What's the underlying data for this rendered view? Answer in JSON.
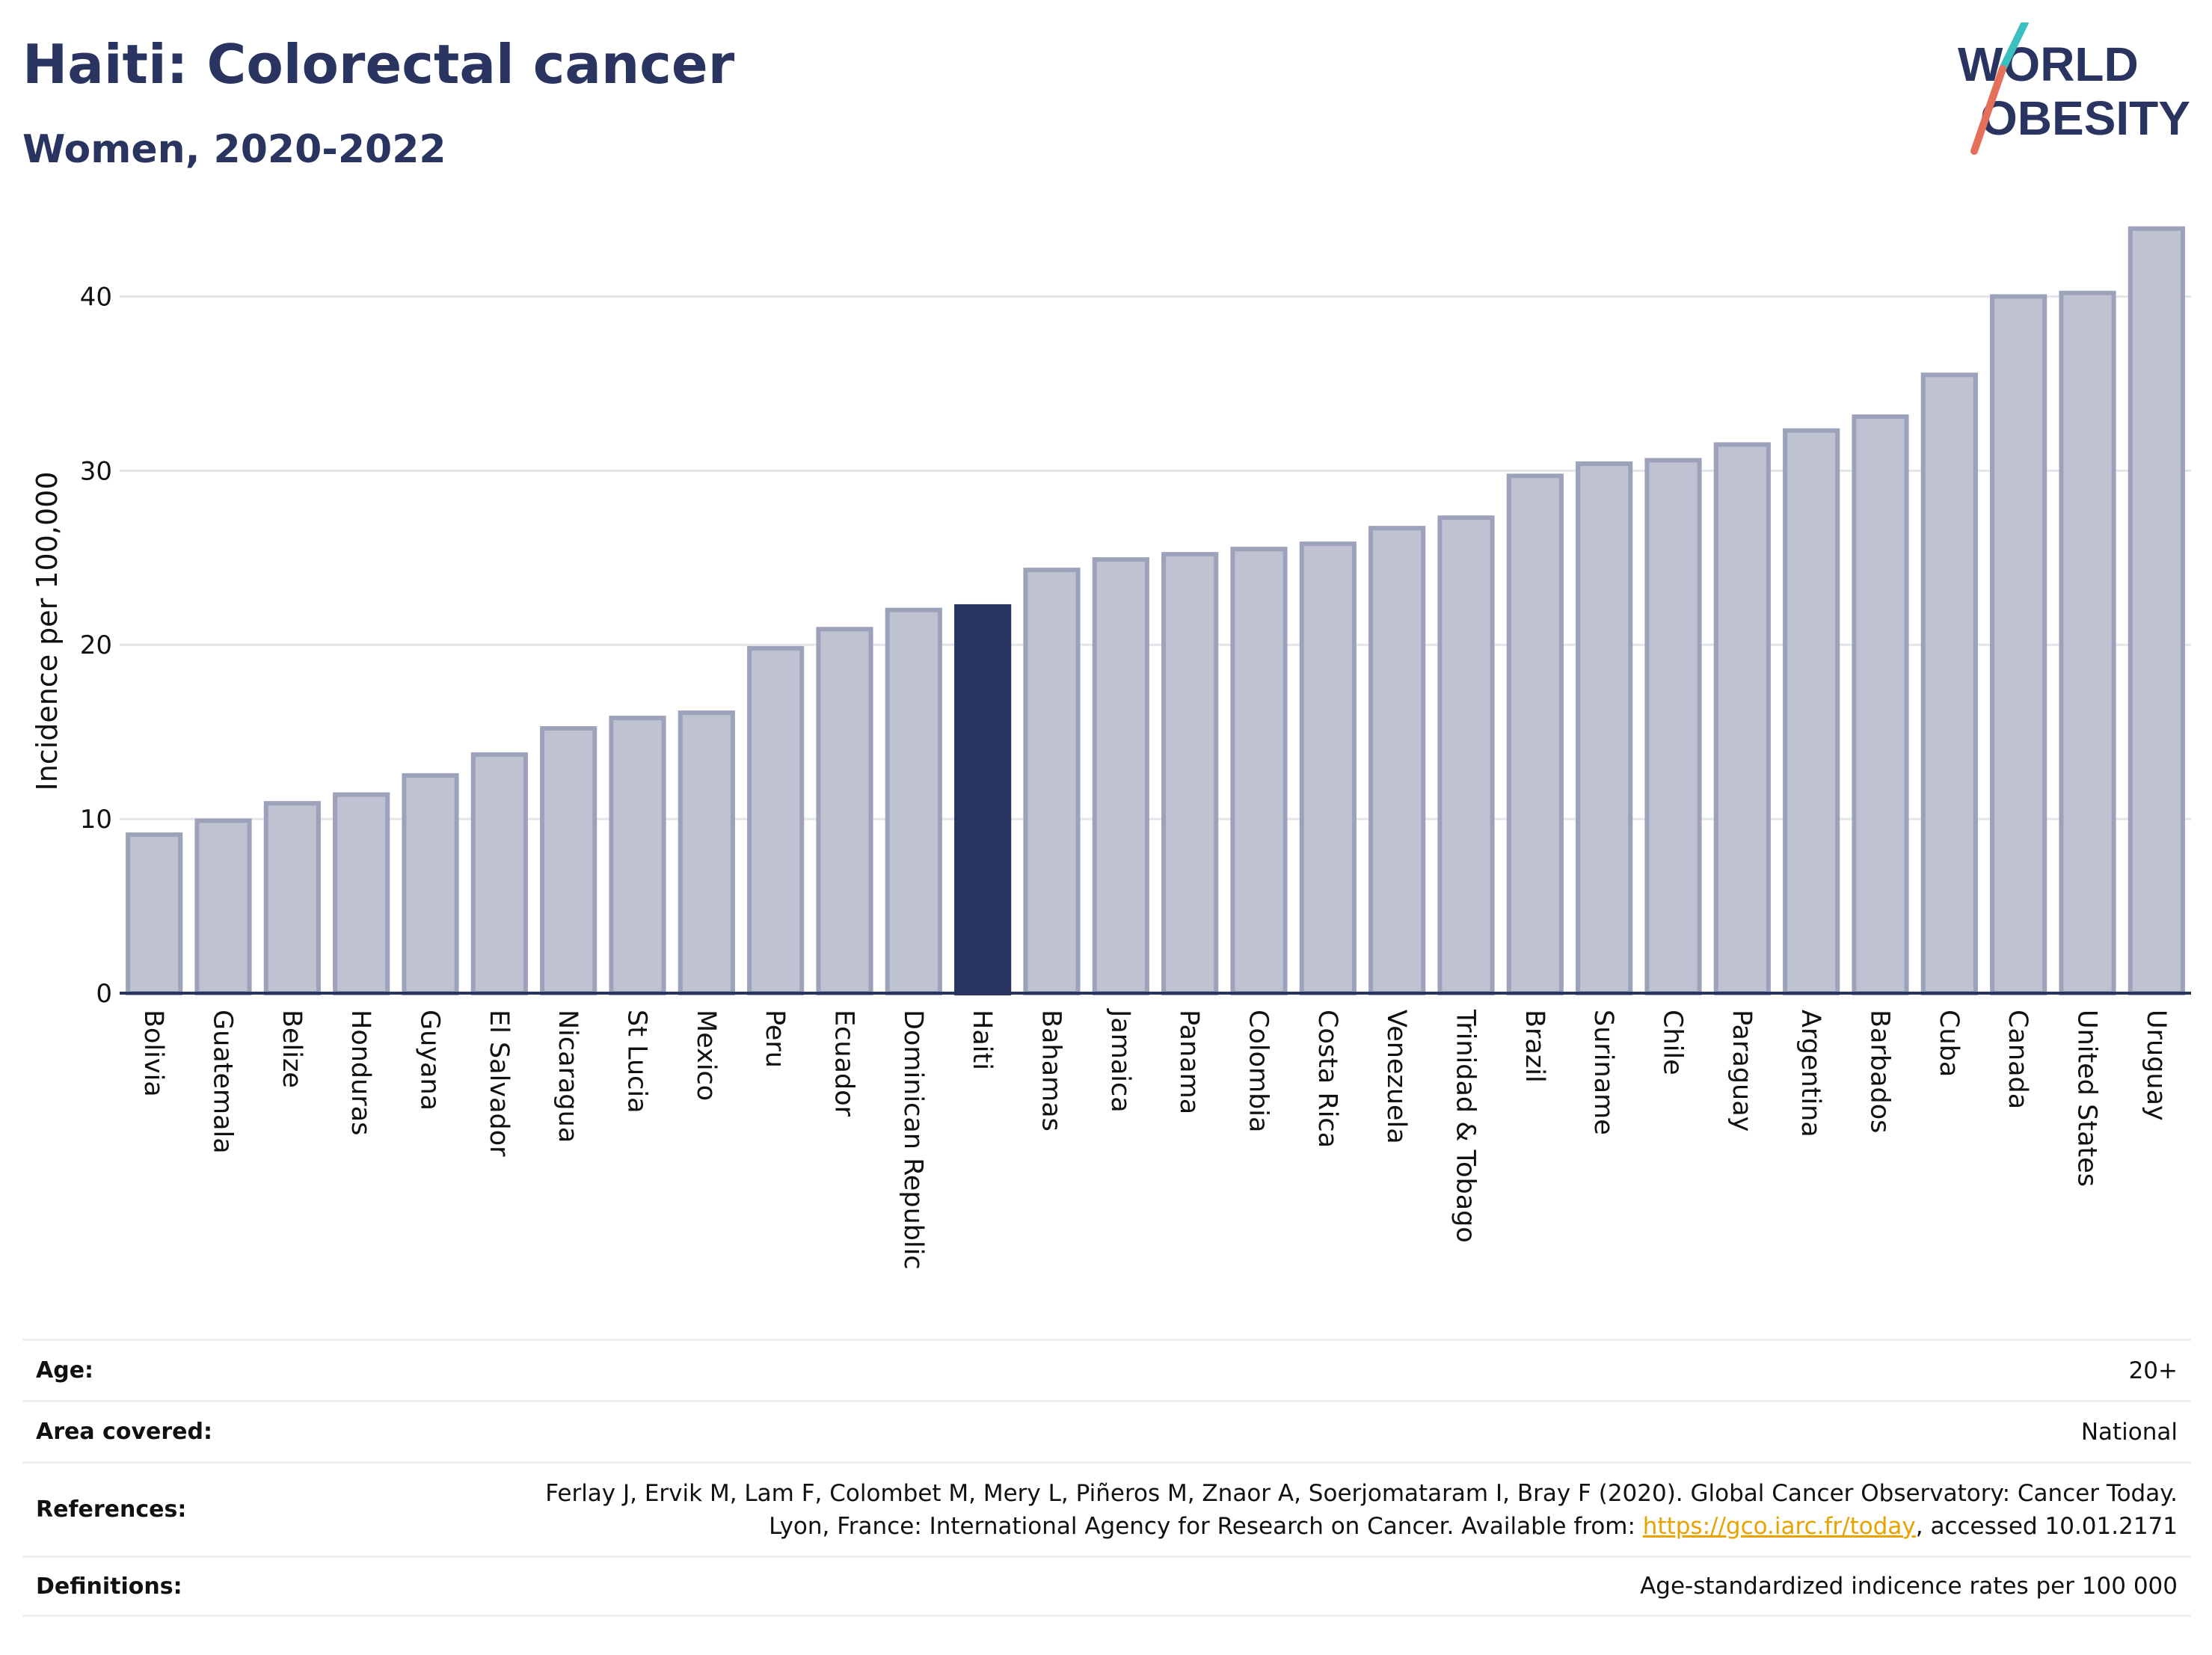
{
  "header": {
    "title": "Haiti: Colorectal cancer",
    "subtitle": "Women, 2020-2022"
  },
  "logo": {
    "line1": "WORLD",
    "line2": "OBESITY",
    "accent_colors": [
      "#3cbfbf",
      "#e5705a"
    ]
  },
  "colors": {
    "highlight": "#2a3460",
    "bar": "#bfc2d0",
    "bar_border": "#9da2bb",
    "grid": "#e3e5ea",
    "axis": "#2a3460"
  },
  "chart_data": {
    "type": "bar",
    "title": "Haiti: Colorectal cancer",
    "subtitle": "Women, 2020-2022",
    "ylabel": "Incidence per 100,000",
    "xlabel": "",
    "ylim": [
      0,
      45
    ],
    "yticks": [
      0,
      10,
      20,
      30,
      40
    ],
    "grid": true,
    "highlight": "Haiti",
    "categories": [
      "Bolivia",
      "Guatemala",
      "Belize",
      "Honduras",
      "Guyana",
      "El Salvador",
      "Nicaragua",
      "St Lucia",
      "Mexico",
      "Peru",
      "Ecuador",
      "Dominican Republic",
      "Haiti",
      "Bahamas",
      "Jamaica",
      "Panama",
      "Colombia",
      "Costa Rica",
      "Venezuela",
      "Trinidad & Tobago",
      "Brazil",
      "Suriname",
      "Chile",
      "Paraguay",
      "Argentina",
      "Barbados",
      "Cuba",
      "Canada",
      "United States",
      "Uruguay"
    ],
    "values": [
      9.1,
      9.9,
      10.9,
      11.4,
      12.5,
      13.7,
      15.2,
      15.8,
      16.1,
      19.8,
      20.9,
      22.0,
      22.2,
      24.3,
      24.9,
      25.2,
      25.5,
      25.8,
      26.7,
      27.3,
      29.7,
      30.4,
      30.6,
      31.5,
      32.3,
      33.1,
      35.5,
      40.0,
      40.2,
      43.9
    ]
  },
  "info": {
    "age_label": "Age:",
    "age_value": "20+",
    "area_label": "Area covered:",
    "area_value": "National",
    "references_label": "References:",
    "references_text": "Ferlay J, Ervik M, Lam F, Colombet M, Mery L, Piñeros M, Znaor A, Soerjomataram I, Bray F (2020). Global Cancer Observatory: Cancer Today. Lyon, France: International Agency for Research on Cancer. Available from: ",
    "references_link": "https://gco.iarc.fr/today",
    "references_suffix": ", accessed 10.01.2171",
    "definitions_label": "Definitions:",
    "definitions_value": "Age-standardized indicence rates per 100 000"
  }
}
